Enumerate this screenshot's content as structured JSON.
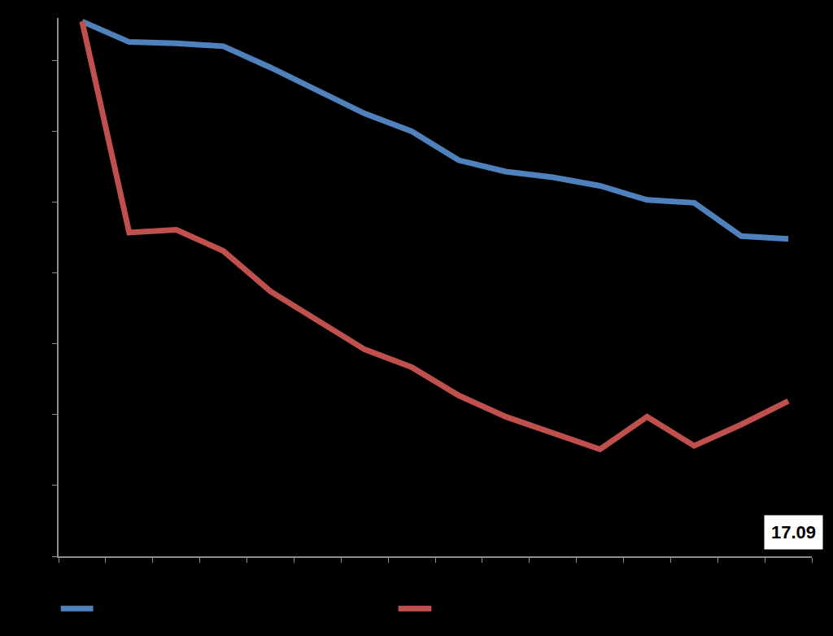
{
  "chart_data": {
    "type": "line",
    "x": [
      0,
      1,
      2,
      3,
      4,
      5,
      6,
      7,
      8,
      9,
      10,
      11,
      12,
      13,
      14,
      15
    ],
    "series": [
      {
        "color": "#4f81bd",
        "values": [
          7.55,
          7.26,
          7.24,
          7.2,
          6.9,
          6.58,
          6.25,
          6.0,
          5.59,
          5.43,
          5.35,
          5.23,
          5.03,
          4.99,
          4.52,
          4.48
        ]
      },
      {
        "color": "#c0504d",
        "values": [
          7.55,
          4.57,
          4.61,
          4.31,
          3.74,
          3.32,
          2.92,
          2.67,
          2.27,
          1.97,
          1.75,
          1.51,
          1.97,
          1.56,
          1.86,
          2.19
        ]
      }
    ],
    "xlim": [
      -0.5,
      15.5
    ],
    "xticks": [
      -0.5,
      0.5,
      1.5,
      2.5,
      3.5,
      4.5,
      5.5,
      6.5,
      7.5,
      8.5,
      9.5,
      10.5,
      11.5,
      12.5,
      13.5,
      14.5,
      15.5
    ],
    "ylim": [
      0,
      7.6
    ],
    "yticks": [
      0,
      1,
      2,
      3,
      4,
      5,
      6,
      7
    ],
    "tick_labels": false,
    "grid": false,
    "annotations": [
      {
        "text": "17.09"
      }
    ]
  }
}
